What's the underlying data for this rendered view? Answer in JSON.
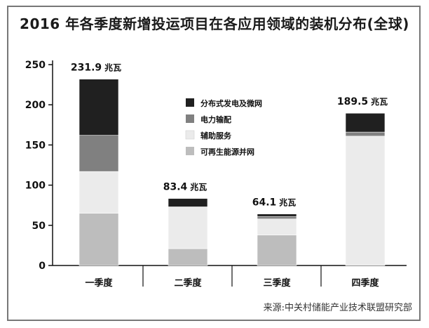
{
  "title": "2016 年各季度新增投运项目在各应用领域的装机分布(全球)",
  "source": "来源:中关村储能产业技术联盟研究部",
  "chart_data": {
    "type": "bar",
    "stacked": true,
    "categories": [
      "一季度",
      "二季度",
      "三季度",
      "四季度"
    ],
    "series": [
      {
        "name": "可再生能源并网",
        "color": "#bdbdbd",
        "values": [
          65,
          21,
          38,
          0
        ]
      },
      {
        "name": "辅助服务",
        "color": "#ebebeb",
        "values": [
          52,
          52,
          20,
          161
        ]
      },
      {
        "name": "电力输配",
        "color": "#808080",
        "values": [
          45,
          0,
          3,
          5
        ]
      },
      {
        "name": "分布式发电及微网",
        "color": "#202020",
        "values": [
          69.9,
          10.4,
          3.1,
          23.5
        ]
      }
    ],
    "totals": [
      231.9,
      83.4,
      64.1,
      189.5
    ],
    "total_unit": "兆瓦",
    "total_labels": [
      "231.9",
      "83.4",
      "64.1",
      "189.5"
    ],
    "ylim": [
      0,
      250
    ],
    "yticks": [
      0,
      50,
      100,
      150,
      200,
      250
    ],
    "legend_position": "top-center",
    "grid": false
  }
}
